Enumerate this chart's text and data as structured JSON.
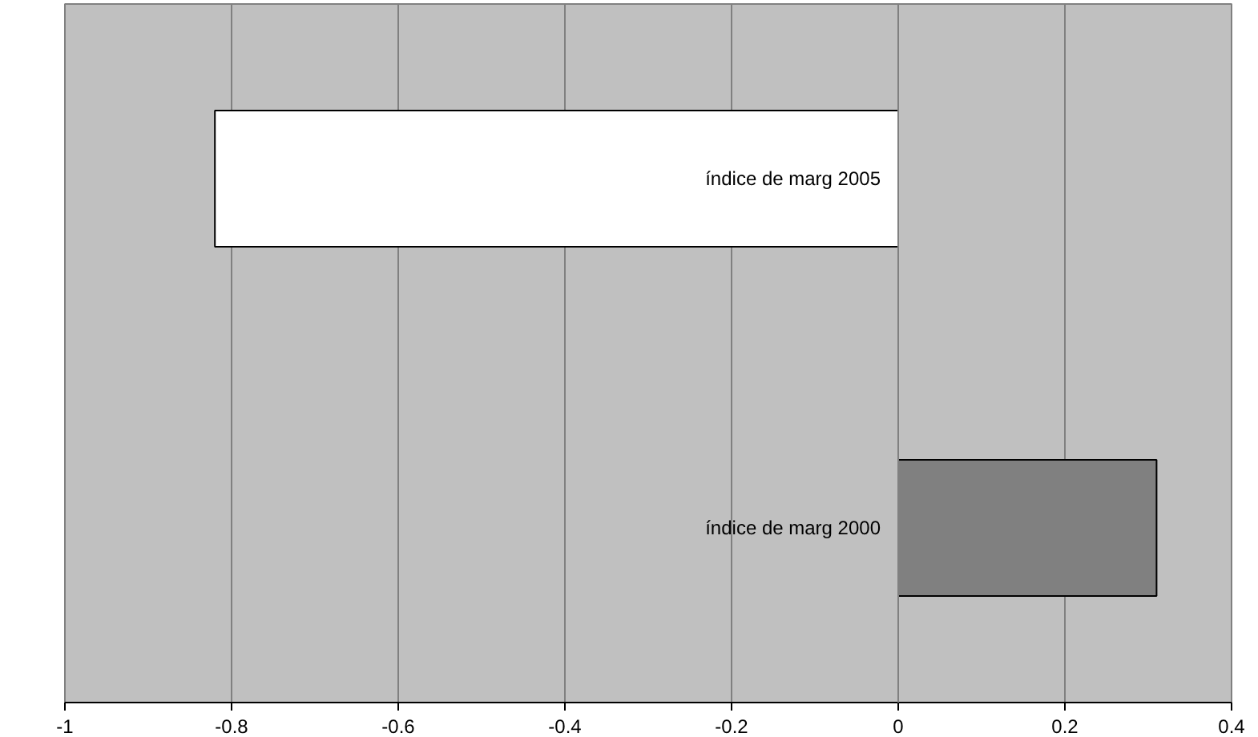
{
  "chart_data": {
    "type": "bar",
    "orientation": "horizontal",
    "categories": [
      "índice de marg 2005",
      "índice de marg 2000"
    ],
    "values": [
      -0.82,
      0.31
    ],
    "colors": [
      "#ffffff",
      "#808080"
    ],
    "xlim": [
      -1,
      0.4
    ],
    "xticks": [
      -1,
      -0.8,
      -0.6,
      -0.4,
      -0.2,
      0,
      0.2,
      0.4
    ],
    "grid": "x"
  }
}
